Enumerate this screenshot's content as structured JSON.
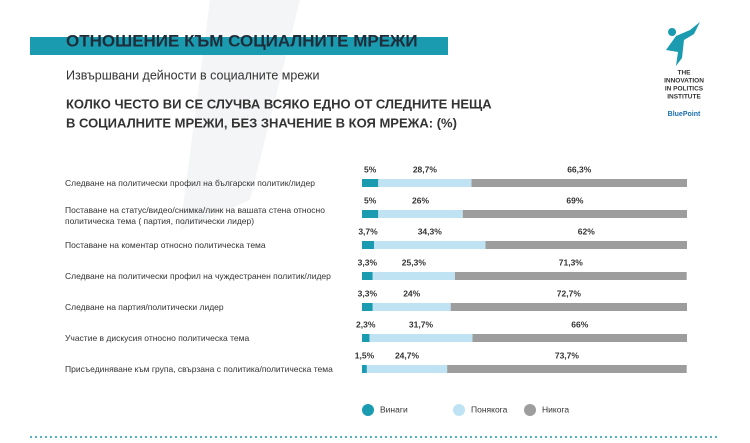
{
  "chart_data": {
    "type": "bar",
    "orientation": "horizontal",
    "stacked": true,
    "title": "ОТНОШЕНИЕ КЪМ СОЦИАЛНИТЕ МРЕЖИ",
    "subtitle": "Извършвани дейности в социалните мрежи",
    "question": [
      "КОЛКО ЧЕСТО ВИ СЕ СЛУЧВА ВСЯКО ЕДНО ОТ СЛЕДНИТЕ НЕЩА",
      "В СОЦИАЛНИТЕ МРЕЖИ, БЕЗ ЗНАЧЕНИЕ В КОЯ МРЕЖА: (%)"
    ],
    "categories": [
      "Следване на политически профил на български политик/лидер",
      "Поставане на статус/видео/снимка/линк на вашата стена относно политическа тема ( партия, политически лидер)",
      "Поставане на коментар относно политическа тема",
      "Следване на политически профил на чуждестранен политик/лидер",
      "Следване на партия/политически лидер",
      "Участие в дискусия относно политическа тема",
      "Присъединяване към група, свързана с политика/политическа тема"
    ],
    "xlim": [
      0,
      100
    ],
    "legend": "bottom",
    "series": [
      {
        "name": "Винаги",
        "color": "#1b9bb0",
        "values": [
          5,
          5,
          3.7,
          3.3,
          3.3,
          2.3,
          1.5
        ],
        "value_labels": [
          "5%",
          "5%",
          "3,7%",
          "3,3%",
          "3,3%",
          "2,3%",
          "1,5%"
        ]
      },
      {
        "name": "Понякога",
        "color": "#bfe3f3",
        "values": [
          28.7,
          26,
          34.3,
          25.3,
          24,
          31.7,
          24.7
        ],
        "value_labels": [
          "28,7%",
          "26%",
          "34,3%",
          "25,3%",
          "24%",
          "31,7%",
          "24,7%"
        ]
      },
      {
        "name": "Никога",
        "color": "#9d9d9d",
        "values": [
          66.3,
          69,
          62,
          71.3,
          72.7,
          66,
          73.7
        ],
        "value_labels": [
          "66,3%",
          "69%",
          "62%",
          "71,3%",
          "72,7%",
          "66%",
          "73,7%"
        ]
      }
    ]
  },
  "logo": {
    "lines": [
      "THE",
      "INNOVATION",
      "IN POLITICS",
      "INSTITUTE"
    ],
    "brand": "BluePoint"
  }
}
